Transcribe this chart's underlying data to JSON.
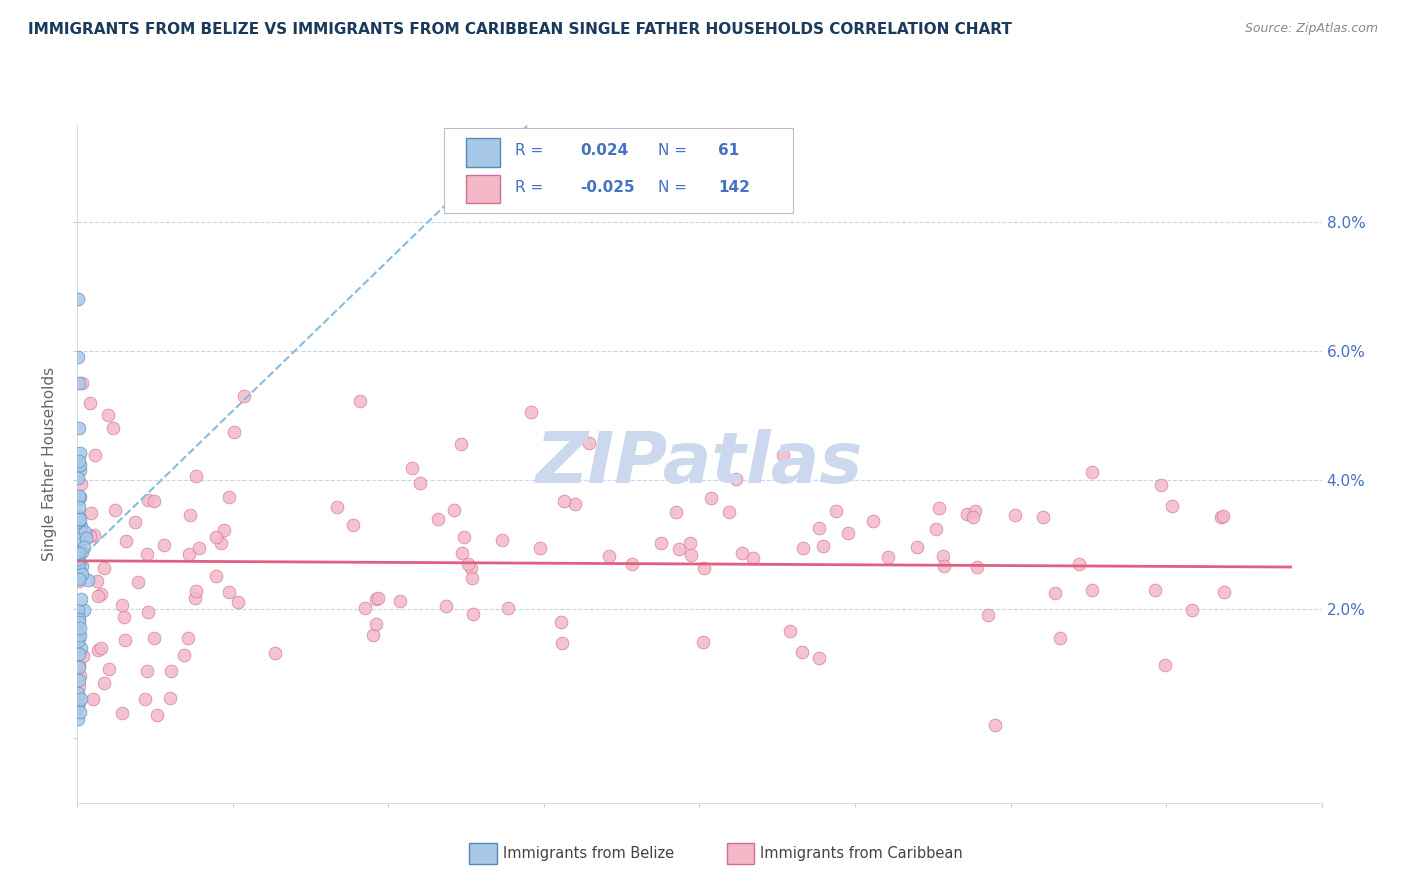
{
  "title": "IMMIGRANTS FROM BELIZE VS IMMIGRANTS FROM CARIBBEAN SINGLE FATHER HOUSEHOLDS CORRELATION CHART",
  "source": "Source: ZipAtlas.com",
  "ylabel": "Single Father Households",
  "x_lim": [
    0.0,
    80.0
  ],
  "y_lim": [
    -1.0,
    9.5
  ],
  "belize_color": "#a8c8e8",
  "belize_edge": "#5588bb",
  "caribbean_color": "#f4b8c8",
  "caribbean_edge": "#d07090",
  "belize_R": 0.024,
  "belize_N": 61,
  "caribbean_R": -0.025,
  "caribbean_N": 142,
  "trend_blue_color": "#88bbdd",
  "trend_pink_color": "#e06080",
  "background_color": "#ffffff",
  "grid_color": "#c8d4e8",
  "title_color": "#1a3a5c",
  "axis_color": "#4472c4",
  "watermark": "ZIPatlas",
  "watermark_color": "#ccd8ee"
}
